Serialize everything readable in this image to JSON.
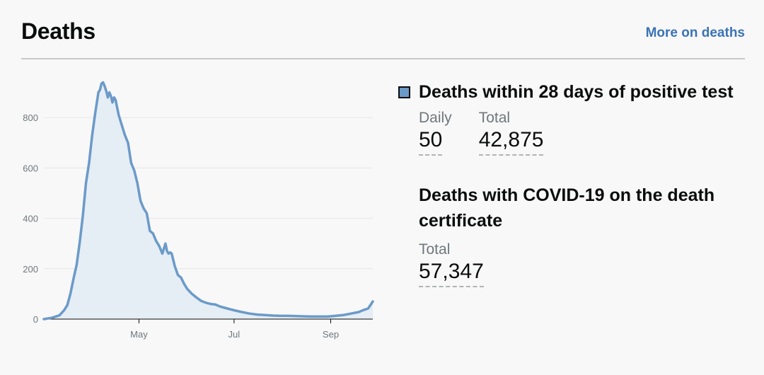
{
  "header": {
    "title": "Deaths",
    "more_link": "More on deaths"
  },
  "metrics": [
    {
      "title": "Deaths within 28 days of positive test",
      "legend_color": "#6b9ac8",
      "daily_label": "Daily",
      "daily_value": "50",
      "total_label": "Total",
      "total_value": "42,875"
    },
    {
      "title": "Deaths with COVID-19 on the death certificate",
      "total_label": "Total",
      "total_value": "57,347"
    }
  ],
  "chart_data": {
    "type": "area",
    "title": "",
    "xlabel": "",
    "ylabel": "",
    "ylim": [
      0,
      1000
    ],
    "yticks": [
      0,
      200,
      400,
      600,
      800
    ],
    "xticks": [
      {
        "label": "May",
        "date": "2020-05-01"
      },
      {
        "label": "Jul",
        "date": "2020-07-01"
      },
      {
        "label": "Sep",
        "date": "2020-09-01"
      }
    ],
    "x_range": [
      "2020-03-01",
      "2020-09-28"
    ],
    "grid": "horizontal",
    "line_color": "#6b9ac8",
    "fill_color": "#e5edf5",
    "series": [
      {
        "x": [
          "2020-03-01",
          "2020-03-06",
          "2020-03-11",
          "2020-03-14",
          "2020-03-16",
          "2020-03-18",
          "2020-03-20",
          "2020-03-22",
          "2020-03-24",
          "2020-03-26",
          "2020-03-28",
          "2020-03-30",
          "2020-04-01",
          "2020-04-03",
          "2020-04-05",
          "2020-04-06",
          "2020-04-07",
          "2020-04-08",
          "2020-04-09",
          "2020-04-10",
          "2020-04-11",
          "2020-04-12",
          "2020-04-13",
          "2020-04-14",
          "2020-04-15",
          "2020-04-16",
          "2020-04-17",
          "2020-04-18",
          "2020-04-20",
          "2020-04-22",
          "2020-04-24",
          "2020-04-26",
          "2020-04-28",
          "2020-04-30",
          "2020-05-02",
          "2020-05-04",
          "2020-05-06",
          "2020-05-08",
          "2020-05-10",
          "2020-05-12",
          "2020-05-14",
          "2020-05-16",
          "2020-05-18",
          "2020-05-19",
          "2020-05-20",
          "2020-05-21",
          "2020-05-22",
          "2020-05-24",
          "2020-05-26",
          "2020-05-28",
          "2020-05-30",
          "2020-06-01",
          "2020-06-04",
          "2020-06-07",
          "2020-06-10",
          "2020-06-13",
          "2020-06-16",
          "2020-06-19",
          "2020-06-22",
          "2020-06-25",
          "2020-06-28",
          "2020-07-01",
          "2020-07-06",
          "2020-07-11",
          "2020-07-16",
          "2020-07-21",
          "2020-07-26",
          "2020-07-31",
          "2020-08-05",
          "2020-08-10",
          "2020-08-15",
          "2020-08-20",
          "2020-08-25",
          "2020-08-30",
          "2020-09-04",
          "2020-09-09",
          "2020-09-14",
          "2020-09-19",
          "2020-09-22",
          "2020-09-25",
          "2020-09-28"
        ],
        "y": [
          0,
          5,
          15,
          35,
          55,
          100,
          160,
          215,
          305,
          410,
          540,
          620,
          730,
          820,
          900,
          910,
          935,
          940,
          925,
          905,
          880,
          900,
          885,
          860,
          880,
          870,
          840,
          810,
          770,
          730,
          700,
          620,
          590,
          540,
          470,
          440,
          420,
          350,
          340,
          310,
          290,
          260,
          300,
          270,
          260,
          265,
          260,
          210,
          175,
          165,
          140,
          120,
          100,
          85,
          72,
          65,
          60,
          58,
          50,
          45,
          40,
          35,
          28,
          22,
          18,
          16,
          14,
          13,
          13,
          12,
          11,
          10,
          10,
          10,
          13,
          16,
          22,
          28,
          36,
          42,
          70
        ]
      }
    ]
  }
}
